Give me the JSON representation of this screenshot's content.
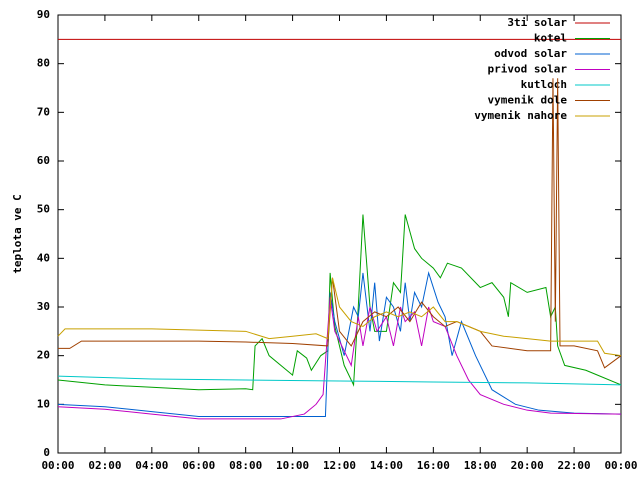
{
  "chart_data": {
    "type": "line",
    "ylabel": "teplota ve C",
    "xlim": [
      0,
      24
    ],
    "ylim": [
      0,
      90
    ],
    "yticks": [
      0,
      10,
      20,
      30,
      40,
      50,
      60,
      70,
      80,
      90
    ],
    "xticks": [
      {
        "value": 0,
        "label": "00:00"
      },
      {
        "value": 2,
        "label": "02:00"
      },
      {
        "value": 4,
        "label": "04:00"
      },
      {
        "value": 6,
        "label": "06:00"
      },
      {
        "value": 8,
        "label": "08:00"
      },
      {
        "value": 10,
        "label": "10:00"
      },
      {
        "value": 12,
        "label": "12:00"
      },
      {
        "value": 14,
        "label": "14:00"
      },
      {
        "value": 16,
        "label": "16:00"
      },
      {
        "value": 18,
        "label": "18:00"
      },
      {
        "value": 20,
        "label": "20:00"
      },
      {
        "value": 22,
        "label": "22:00"
      },
      {
        "value": 24,
        "label": "00:00"
      }
    ],
    "legend": "top-right",
    "series": [
      {
        "name": "3ti solar",
        "color": "#c00000",
        "x": [
          0,
          24
        ],
        "values": [
          85,
          85
        ]
      },
      {
        "name": "kotel",
        "color": "#00a000",
        "x": [
          0,
          2,
          4,
          6,
          8,
          8.3,
          8.4,
          8.7,
          9,
          10,
          10.2,
          10.6,
          10.8,
          11.2,
          11.5,
          11.6,
          11.8,
          12.2,
          12.6,
          12.8,
          13,
          13.3,
          13.5,
          14,
          14.3,
          14.6,
          14.8,
          15.2,
          15.5,
          16,
          16.3,
          16.6,
          17.2,
          18,
          18.5,
          19,
          19.2,
          19.3,
          20,
          20.8,
          21,
          21.2,
          21.3,
          21.6,
          22.5,
          23,
          24
        ],
        "values": [
          15,
          14,
          13.5,
          13,
          13.2,
          13,
          22,
          23.5,
          20,
          16,
          21,
          19.5,
          17,
          20,
          21,
          37,
          26,
          18,
          14,
          30,
          49,
          30,
          25,
          25,
          35,
          33,
          49,
          42,
          40,
          38,
          36,
          39,
          38,
          34,
          35,
          32,
          28,
          35,
          33,
          34,
          28,
          30,
          22,
          18,
          17,
          16,
          14
        ]
      },
      {
        "name": "odvod solar",
        "color": "#0060d0",
        "x": [
          0,
          2,
          4,
          6,
          8,
          10,
          11.4,
          11.6,
          11.8,
          12.2,
          12.6,
          12.8,
          13,
          13.3,
          13.5,
          13.7,
          14,
          14.3,
          14.6,
          14.8,
          15,
          15.2,
          15.5,
          15.8,
          16.2,
          16.5,
          16.8,
          17.2,
          17.8,
          18.5,
          19.5,
          20.5,
          22,
          24
        ],
        "values": [
          10,
          9.5,
          8.5,
          7.5,
          7.5,
          7.5,
          7.5,
          33,
          27,
          20,
          30,
          28,
          37,
          25,
          35,
          23,
          32,
          30,
          25,
          35,
          27,
          33,
          30,
          37,
          31,
          28,
          20,
          27,
          20,
          13,
          10,
          8.8,
          8.2,
          8
        ]
      },
      {
        "name": "privod solar",
        "color": "#c000c0",
        "x": [
          0,
          2,
          4,
          6,
          8,
          9.5,
          10.5,
          11,
          11.3,
          11.6,
          11.8,
          12.2,
          12.5,
          12.8,
          13,
          13.3,
          13.6,
          14,
          14.3,
          14.6,
          14.8,
          15.2,
          15.5,
          15.8,
          16,
          16.5,
          17,
          17.5,
          18,
          19,
          20,
          21,
          24
        ],
        "values": [
          9.5,
          9,
          8,
          7,
          7,
          7,
          8,
          10,
          12,
          32,
          25,
          21,
          18,
          28,
          22,
          30,
          25,
          28,
          22,
          30,
          27,
          29,
          22,
          30,
          27,
          26,
          20,
          15,
          12,
          10,
          8.8,
          8.2,
          8
        ]
      },
      {
        "name": "kutloch",
        "color": "#00c8c8",
        "x": [
          0,
          4,
          8,
          12,
          16,
          20,
          24
        ],
        "values": [
          15.8,
          15.2,
          15,
          14.8,
          14.6,
          14.4,
          14
        ]
      },
      {
        "name": "vymenik dole",
        "color": "#a04000",
        "x": [
          0,
          0.5,
          1,
          6,
          8,
          10,
          11.5,
          11.7,
          12,
          12.5,
          13,
          13.5,
          14,
          14.5,
          15,
          15.5,
          16,
          16.5,
          17,
          18,
          18.5,
          20,
          21,
          21.1,
          21.2,
          21.3,
          21.4,
          22,
          23,
          23.3,
          24
        ],
        "values": [
          21.5,
          21.5,
          23,
          23,
          22.8,
          22.5,
          22,
          36,
          25,
          22,
          27,
          29,
          28,
          30,
          27,
          31,
          28,
          26,
          27,
          25,
          22,
          21,
          21,
          77,
          27,
          77,
          22,
          22,
          21,
          17.5,
          20
        ]
      },
      {
        "name": "vymenik nahore",
        "color": "#c8a000",
        "x": [
          0,
          0.3,
          4,
          8,
          9,
          10,
          11,
          11.5,
          11.7,
          12,
          12.5,
          13,
          13.5,
          14,
          14.5,
          15,
          15.5,
          16,
          16.5,
          17,
          18,
          19,
          20,
          21,
          22,
          23,
          23.3,
          24
        ],
        "values": [
          24,
          25.5,
          25.5,
          25,
          23.5,
          24,
          24.5,
          23.5,
          36,
          30,
          27,
          26,
          28,
          29,
          28,
          29,
          28,
          30,
          27,
          27,
          25,
          24,
          23.5,
          23,
          23,
          23,
          20.5,
          20
        ]
      }
    ]
  }
}
